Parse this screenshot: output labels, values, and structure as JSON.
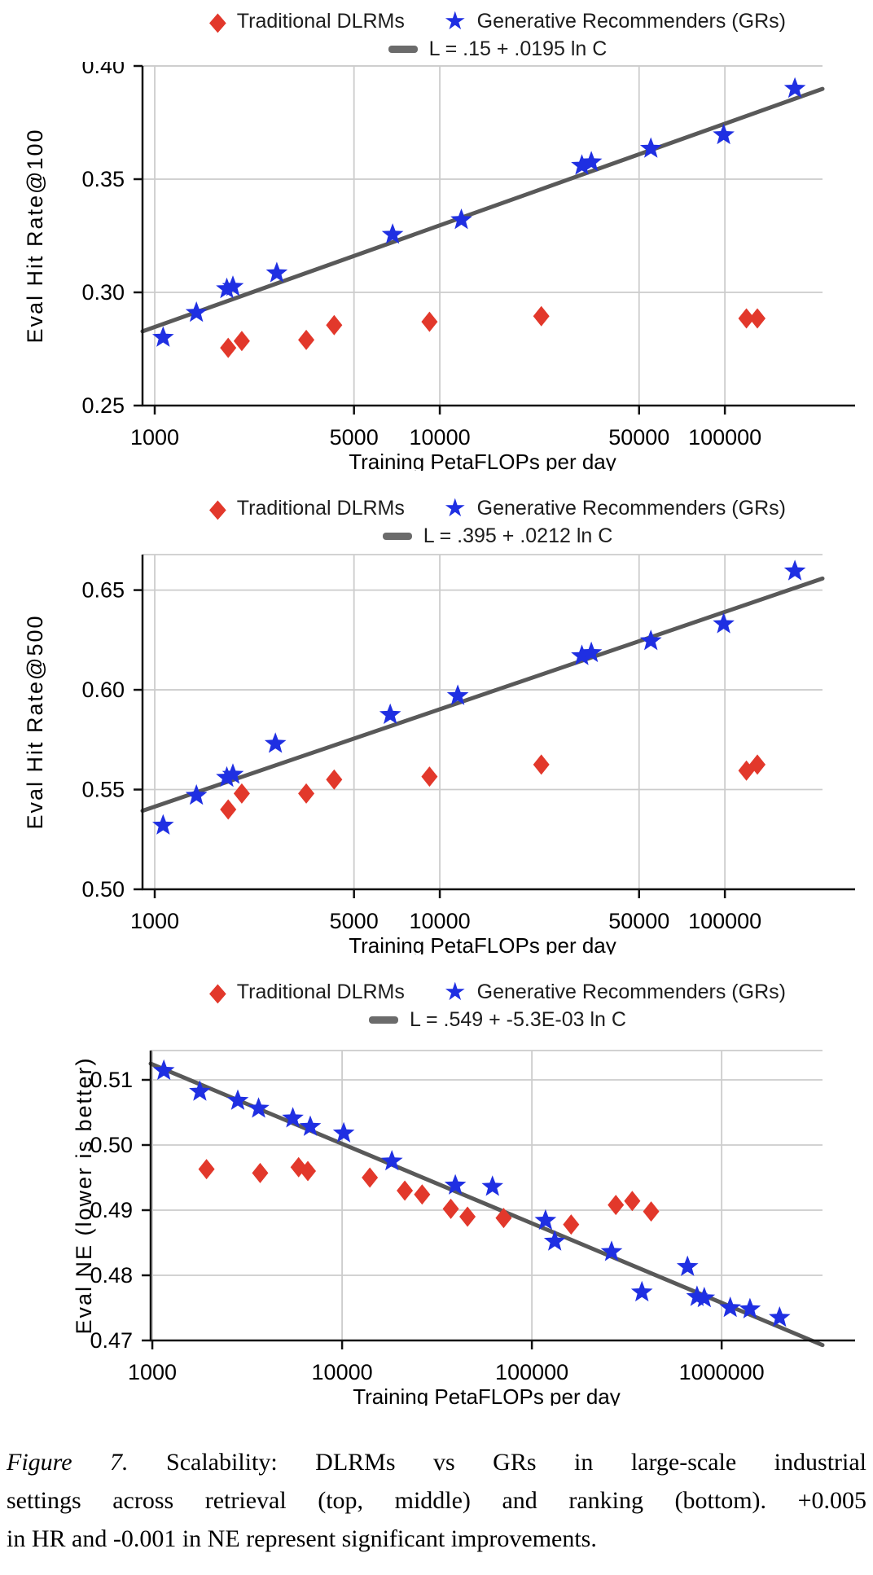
{
  "legend": {
    "dlrm_label": "Traditional DLRMs",
    "gr_label": "Generative Recommenders (GRs)"
  },
  "colors": {
    "dlrm": "#e2382b",
    "gr": "#1f2fe2",
    "fit_line": "#595959",
    "grid": "#cccccc",
    "axis": "#111111",
    "text": "#000000"
  },
  "caption": {
    "figure_label": "Figure 7.",
    "line1_rest": "Scalability: DLRMs vs GRs in large-scale industrial",
    "line2": "settings across retrieval (top, middle) and ranking (bottom). +0.005",
    "line3": "in HR and -0.001 in NE represent significant improvements."
  },
  "chart_data": [
    {
      "type": "scatter",
      "title": "",
      "xlabel": "Training PetaFLOPs per day",
      "ylabel": "Eval Hit Rate@100",
      "x_scale": "log",
      "fit_label": "L = .15 + .0195 ln C",
      "fit": {
        "intercept": 0.15,
        "ln_coef": 0.0195
      },
      "x_range": [
        906,
        220000
      ],
      "y_range": [
        0.25,
        0.4
      ],
      "x_ticks": [
        1000,
        5000,
        10000,
        50000,
        100000
      ],
      "x_tick_labels": [
        "1000",
        "5000",
        "10000",
        "50000",
        "100000"
      ],
      "y_ticks": [
        0.25,
        0.3,
        0.35,
        0.4
      ],
      "y_tick_labels": [
        "0.25",
        "0.30",
        "0.35",
        "0.40"
      ],
      "series": [
        {
          "name": "Traditional DLRMs",
          "marker": "diamond",
          "points": [
            [
              1810,
              0.2755
            ],
            [
              2020,
              0.2785
            ],
            [
              3400,
              0.279
            ],
            [
              4260,
              0.2855
            ],
            [
              9200,
              0.287
            ],
            [
              22700,
              0.2895
            ],
            [
              119000,
              0.2885
            ],
            [
              130000,
              0.2885
            ]
          ]
        },
        {
          "name": "Generative Recommenders (GRs)",
          "marker": "star",
          "points": [
            [
              1070,
              0.28
            ],
            [
              1400,
              0.291
            ],
            [
              1790,
              0.3015
            ],
            [
              1880,
              0.3025
            ],
            [
              2680,
              0.3085
            ],
            [
              6830,
              0.3255
            ],
            [
              11900,
              0.332
            ],
            [
              31500,
              0.356
            ],
            [
              34000,
              0.3575
            ],
            [
              55000,
              0.3635
            ],
            [
              99000,
              0.3695
            ],
            [
              176000,
              0.39
            ]
          ]
        }
      ]
    },
    {
      "type": "scatter",
      "title": "",
      "xlabel": "Training PetaFLOPs per day",
      "ylabel": "Eval Hit Rate@500",
      "x_scale": "log",
      "fit_label": "L = .395 + .0212 ln C",
      "fit": {
        "intercept": 0.395,
        "ln_coef": 0.0212
      },
      "x_range": [
        906,
        220000
      ],
      "y_range": [
        0.5,
        0.6678
      ],
      "x_ticks": [
        1000,
        5000,
        10000,
        50000,
        100000
      ],
      "x_tick_labels": [
        "1000",
        "5000",
        "10000",
        "50000",
        "100000"
      ],
      "y_ticks": [
        0.5,
        0.55,
        0.6,
        0.65
      ],
      "y_tick_labels": [
        "0.50",
        "0.55",
        "0.60",
        "0.65"
      ],
      "series": [
        {
          "name": "Traditional DLRMs",
          "marker": "diamond",
          "points": [
            [
              1810,
              0.54
            ],
            [
              2020,
              0.548
            ],
            [
              3400,
              0.548
            ],
            [
              4260,
              0.555
            ],
            [
              9200,
              0.5565
            ],
            [
              22700,
              0.5625
            ],
            [
              119000,
              0.5595
            ],
            [
              130000,
              0.5625
            ]
          ]
        },
        {
          "name": "Generative Recommenders (GRs)",
          "marker": "star",
          "points": [
            [
              1070,
              0.532
            ],
            [
              1400,
              0.547
            ],
            [
              1790,
              0.556
            ],
            [
              1880,
              0.5575
            ],
            [
              2650,
              0.573
            ],
            [
              6700,
              0.5875
            ],
            [
              11560,
              0.597
            ],
            [
              31500,
              0.617
            ],
            [
              34000,
              0.6185
            ],
            [
              55000,
              0.6245
            ],
            [
              99000,
              0.633
            ],
            [
              176000,
              0.6595
            ]
          ]
        }
      ]
    },
    {
      "type": "scatter",
      "title": "",
      "xlabel": "Training PetaFLOPs per day",
      "ylabel": "Eval NE (lower is better)",
      "x_scale": "log",
      "fit_label": "L = .549 + -5.3E-03 ln C",
      "fit": {
        "intercept": 0.549,
        "ln_coef": -0.0053
      },
      "x_range": [
        980,
        3400000
      ],
      "y_range": [
        0.47,
        0.5145
      ],
      "x_ticks": [
        1000,
        10000,
        100000,
        1000000
      ],
      "x_tick_labels": [
        "1000",
        "10000",
        "100000",
        "1000000"
      ],
      "y_ticks": [
        0.47,
        0.48,
        0.49,
        0.5,
        0.51
      ],
      "y_tick_labels": [
        "0.47",
        "0.48",
        "0.49",
        "0.50",
        "0.51"
      ],
      "series": [
        {
          "name": "Traditional DLRMs",
          "marker": "diamond",
          "points": [
            [
              1930,
              0.4963
            ],
            [
              3700,
              0.4957
            ],
            [
              5900,
              0.4966
            ],
            [
              6600,
              0.496
            ],
            [
              14000,
              0.495
            ],
            [
              21400,
              0.493
            ],
            [
              26400,
              0.4924
            ],
            [
              37400,
              0.4902
            ],
            [
              45800,
              0.489
            ],
            [
              71000,
              0.4888
            ],
            [
              161000,
              0.4878
            ],
            [
              277000,
              0.4908
            ],
            [
              338000,
              0.4914
            ],
            [
              425000,
              0.4898
            ]
          ]
        },
        {
          "name": "Generative Recommenders (GRs)",
          "marker": "star",
          "points": [
            [
              1150,
              0.5114
            ],
            [
              1780,
              0.5082
            ],
            [
              2820,
              0.5068
            ],
            [
              3630,
              0.5056
            ],
            [
              5500,
              0.5041
            ],
            [
              6800,
              0.5028
            ],
            [
              10200,
              0.5018
            ],
            [
              18300,
              0.4975
            ],
            [
              39500,
              0.4938
            ],
            [
              62000,
              0.4936
            ],
            [
              118000,
              0.4884
            ],
            [
              132000,
              0.4852
            ],
            [
              263000,
              0.4836
            ],
            [
              380000,
              0.4774
            ],
            [
              661000,
              0.4813
            ],
            [
              742000,
              0.4767
            ],
            [
              810000,
              0.4765
            ],
            [
              1110000,
              0.475
            ],
            [
              1410000,
              0.4748
            ],
            [
              2020000,
              0.4735
            ]
          ]
        }
      ]
    }
  ]
}
